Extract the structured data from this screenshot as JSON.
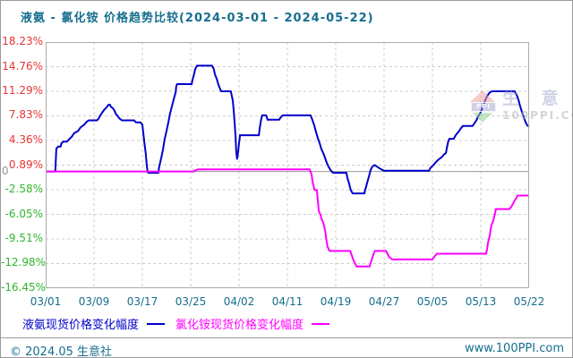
{
  "title": "液氨 - 氯化铵 价格趋势比较(2024-03-01 - 2024-05-22)",
  "footer": {
    "left": "© 2024.05 生意社",
    "right": "www.100PPI.com"
  },
  "watermark": {
    "logo_text": "PPI",
    "brand": "生 意 社",
    "site": "100PPI.COM"
  },
  "colors": {
    "title_text": "#156e8e",
    "axis_text": "#156e8e",
    "axis_positive": "#e63535",
    "axis_negative": "#2eb42e",
    "zero_label": "#999999",
    "grid": "#cccccc",
    "plot_border": "#aaaaaa",
    "zero_line": "#999999",
    "series_ammonia": "#0000cc",
    "series_ammonium_chloride": "#ff00ff"
  },
  "legend": {
    "items": [
      {
        "label": "液氨现货价格变化幅度",
        "color": "#0000cc"
      },
      {
        "label": "氯化铵现货价格变化幅度",
        "color": "#ff00ff"
      }
    ]
  },
  "chart_data": {
    "type": "line",
    "title": "液氨 - 氯化铵 价格趋势比较(2024-03-01 - 2024-05-22)",
    "x_range": [
      "2024-03-01",
      "2024-05-22"
    ],
    "x_tick_labels": [
      "03/01",
      "03/09",
      "03/17",
      "03/25",
      "04/02",
      "04/11",
      "04/19",
      "04/27",
      "05/05",
      "05/13",
      "05/22"
    ],
    "y_tick_labels": [
      "18.23%",
      "14.76%",
      "11.29%",
      "7.83%",
      "4.36%",
      "0.89%",
      "-2.58%",
      "-6.05%",
      "-9.51%",
      "-12.98%",
      "-16.45%"
    ],
    "y_tick_values": [
      18.23,
      14.76,
      11.29,
      7.83,
      4.36,
      0.89,
      -2.58,
      -6.05,
      -9.51,
      -12.98,
      -16.45
    ],
    "ylim": [
      -16.45,
      18.23
    ],
    "zero_label": "0",
    "grid": true,
    "legend_position": "bottom",
    "unit": "%",
    "series": [
      {
        "name": "液氨现货价格变化幅度",
        "color": "#0000cc",
        "points_x_percent_of_axis_y_value_pct": [
          [
            0,
            0
          ],
          [
            2.0,
            0
          ],
          [
            2.2,
            3.2
          ],
          [
            2.6,
            3.5
          ],
          [
            3.1,
            3.5
          ],
          [
            3.3,
            4.0
          ],
          [
            3.7,
            4.2
          ],
          [
            4.4,
            4.2
          ],
          [
            4.8,
            4.5
          ],
          [
            5.4,
            4.9
          ],
          [
            5.9,
            5.4
          ],
          [
            6.7,
            5.7
          ],
          [
            7.2,
            6.2
          ],
          [
            8.0,
            6.6
          ],
          [
            8.5,
            7.0
          ],
          [
            8.9,
            7.2
          ],
          [
            10.6,
            7.2
          ],
          [
            10.9,
            7.4
          ],
          [
            11.3,
            7.9
          ],
          [
            11.7,
            8.3
          ],
          [
            12.0,
            8.6
          ],
          [
            12.4,
            8.9
          ],
          [
            12.8,
            9.2
          ],
          [
            13.0,
            9.4
          ],
          [
            13.3,
            9.4
          ],
          [
            13.5,
            9.1
          ],
          [
            13.9,
            8.9
          ],
          [
            14.3,
            8.5
          ],
          [
            14.5,
            8.1
          ],
          [
            14.8,
            7.9
          ],
          [
            15.2,
            7.5
          ],
          [
            15.6,
            7.3
          ],
          [
            15.8,
            7.2
          ],
          [
            18.3,
            7.2
          ],
          [
            18.7,
            6.9
          ],
          [
            19.6,
            6.9
          ],
          [
            20.0,
            6.6
          ],
          [
            20.2,
            5.4
          ],
          [
            20.4,
            4.1
          ],
          [
            20.7,
            2.5
          ],
          [
            20.9,
            0.9
          ],
          [
            21.1,
            -0.1
          ],
          [
            21.3,
            -0.2
          ],
          [
            23.3,
            -0.2
          ],
          [
            23.5,
            0.7
          ],
          [
            23.9,
            1.9
          ],
          [
            24.3,
            3.2
          ],
          [
            24.6,
            4.5
          ],
          [
            25.0,
            5.7
          ],
          [
            25.4,
            7.0
          ],
          [
            25.7,
            8.1
          ],
          [
            26.1,
            9.1
          ],
          [
            26.5,
            10.2
          ],
          [
            26.9,
            11.2
          ],
          [
            27.0,
            12.0
          ],
          [
            27.2,
            12.3
          ],
          [
            30.2,
            12.3
          ],
          [
            30.4,
            13.0
          ],
          [
            30.7,
            13.7
          ],
          [
            30.9,
            14.4
          ],
          [
            31.3,
            14.9
          ],
          [
            34.4,
            14.9
          ],
          [
            34.8,
            14.4
          ],
          [
            35.0,
            13.7
          ],
          [
            35.4,
            13.0
          ],
          [
            35.7,
            12.3
          ],
          [
            36.1,
            11.6
          ],
          [
            36.3,
            11.3
          ],
          [
            38.3,
            11.3
          ],
          [
            38.7,
            10.0
          ],
          [
            38.9,
            8.5
          ],
          [
            39.1,
            6.8
          ],
          [
            39.3,
            4.7
          ],
          [
            39.4,
            2.9
          ],
          [
            39.6,
            1.7
          ],
          [
            39.8,
            2.7
          ],
          [
            40.0,
            4.0
          ],
          [
            40.2,
            5.1
          ],
          [
            44.1,
            5.1
          ],
          [
            44.3,
            6.2
          ],
          [
            44.6,
            7.4
          ],
          [
            44.8,
            7.9
          ],
          [
            45.6,
            7.9
          ],
          [
            45.9,
            7.3
          ],
          [
            48.3,
            7.3
          ],
          [
            48.7,
            7.7
          ],
          [
            49.1,
            7.9
          ],
          [
            54.8,
            7.9
          ],
          [
            55.2,
            7.2
          ],
          [
            55.6,
            6.4
          ],
          [
            55.9,
            5.6
          ],
          [
            56.3,
            4.7
          ],
          [
            56.7,
            3.9
          ],
          [
            57.0,
            3.2
          ],
          [
            57.4,
            2.6
          ],
          [
            57.8,
            1.9
          ],
          [
            58.1,
            1.3
          ],
          [
            58.5,
            0.7
          ],
          [
            58.9,
            0.2
          ],
          [
            59.3,
            -0.1
          ],
          [
            59.6,
            -0.2
          ],
          [
            62.2,
            -0.2
          ],
          [
            62.4,
            -0.9
          ],
          [
            62.8,
            -1.8
          ],
          [
            63.1,
            -2.6
          ],
          [
            63.5,
            -3.1
          ],
          [
            65.9,
            -3.1
          ],
          [
            66.1,
            -2.6
          ],
          [
            66.5,
            -1.6
          ],
          [
            66.9,
            -0.6
          ],
          [
            67.2,
            0.2
          ],
          [
            67.6,
            0.7
          ],
          [
            68.0,
            0.9
          ],
          [
            68.3,
            0.8
          ],
          [
            68.9,
            0.5
          ],
          [
            69.4,
            0.3
          ],
          [
            70.0,
            0.1
          ],
          [
            79.3,
            0.1
          ],
          [
            79.6,
            0.5
          ],
          [
            80.2,
            0.9
          ],
          [
            80.7,
            1.3
          ],
          [
            81.3,
            1.7
          ],
          [
            81.9,
            2.0
          ],
          [
            82.4,
            2.4
          ],
          [
            82.8,
            2.6
          ],
          [
            83.0,
            3.4
          ],
          [
            83.3,
            4.3
          ],
          [
            83.5,
            4.6
          ],
          [
            84.4,
            4.6
          ],
          [
            84.8,
            5.1
          ],
          [
            85.4,
            5.6
          ],
          [
            85.9,
            6.1
          ],
          [
            86.3,
            6.4
          ],
          [
            88.3,
            6.4
          ],
          [
            88.7,
            6.8
          ],
          [
            89.1,
            7.2
          ],
          [
            89.4,
            7.7
          ],
          [
            89.8,
            8.1
          ],
          [
            90.2,
            8.7
          ],
          [
            90.6,
            9.4
          ],
          [
            90.9,
            10.0
          ],
          [
            91.3,
            10.6
          ],
          [
            91.7,
            11.0
          ],
          [
            92.0,
            11.2
          ],
          [
            92.4,
            11.3
          ],
          [
            97.0,
            11.3
          ],
          [
            97.4,
            10.8
          ],
          [
            97.8,
            10.1
          ],
          [
            98.1,
            9.3
          ],
          [
            98.5,
            8.4
          ],
          [
            98.9,
            7.6
          ],
          [
            99.3,
            6.9
          ],
          [
            99.6,
            6.5
          ],
          [
            100,
            6.3
          ]
        ]
      },
      {
        "name": "氯化铵现货价格变化幅度",
        "color": "#ff00ff",
        "points_x_percent_of_axis_y_value_pct": [
          [
            0,
            0
          ],
          [
            30.6,
            0
          ],
          [
            30.9,
            0.15
          ],
          [
            31.5,
            0.3
          ],
          [
            54.6,
            0.3
          ],
          [
            55.0,
            -0.4
          ],
          [
            55.2,
            -1.4
          ],
          [
            55.6,
            -2.6
          ],
          [
            56.1,
            -2.6
          ],
          [
            56.3,
            -4.1
          ],
          [
            56.5,
            -5.6
          ],
          [
            56.9,
            -6.2
          ],
          [
            57.0,
            -6.6
          ],
          [
            57.4,
            -7.2
          ],
          [
            57.8,
            -8.3
          ],
          [
            58.0,
            -9.4
          ],
          [
            58.3,
            -10.6
          ],
          [
            58.7,
            -11.2
          ],
          [
            63.0,
            -11.2
          ],
          [
            63.3,
            -11.8
          ],
          [
            63.7,
            -12.6
          ],
          [
            64.1,
            -13.1
          ],
          [
            64.3,
            -13.4
          ],
          [
            67.0,
            -13.4
          ],
          [
            67.4,
            -12.5
          ],
          [
            67.8,
            -11.7
          ],
          [
            68.1,
            -11.2
          ],
          [
            70.4,
            -11.2
          ],
          [
            70.7,
            -11.6
          ],
          [
            71.1,
            -12.1
          ],
          [
            71.7,
            -12.4
          ],
          [
            80.0,
            -12.4
          ],
          [
            80.4,
            -12.0
          ],
          [
            80.9,
            -11.6
          ],
          [
            81.5,
            -11.6
          ],
          [
            91.1,
            -11.6
          ],
          [
            91.3,
            -11.0
          ],
          [
            91.5,
            -10.0
          ],
          [
            91.9,
            -8.9
          ],
          [
            92.0,
            -8.3
          ],
          [
            92.2,
            -7.6
          ],
          [
            92.6,
            -6.9
          ],
          [
            92.8,
            -6.3
          ],
          [
            93.0,
            -5.8
          ],
          [
            93.1,
            -5.3
          ],
          [
            95.9,
            -5.3
          ],
          [
            96.3,
            -5.0
          ],
          [
            96.7,
            -4.5
          ],
          [
            97.0,
            -4.1
          ],
          [
            97.4,
            -3.7
          ],
          [
            97.6,
            -3.4
          ],
          [
            100,
            -3.4
          ]
        ]
      }
    ]
  }
}
